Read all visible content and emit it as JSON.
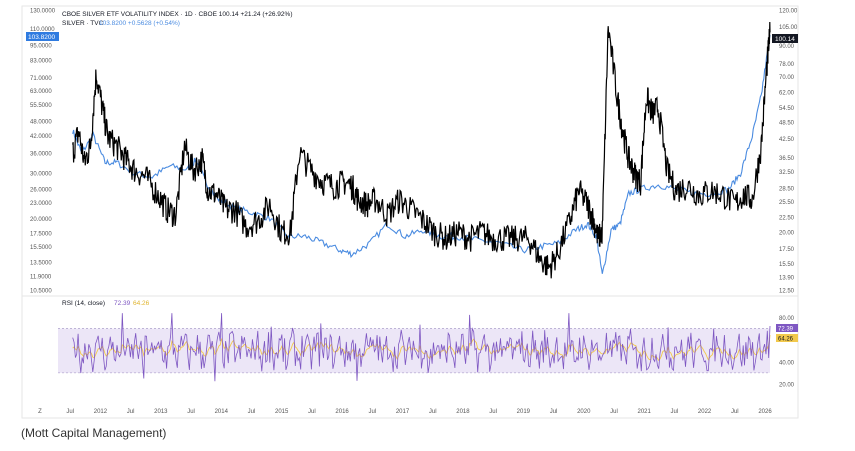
{
  "header": {
    "line1": "CBOE SILVER ETF VOLATILITY INDEX · 1D · CBOE  100.14  +21.24 (+26.92%)",
    "line2_name": "SILVER · TVC",
    "line2_value": "103.8200  +0.5628 (+0.54%)",
    "left_current_badge": "103.8200",
    "right_current_badge": "100.14",
    "rsi_label": "RSI (14, close)",
    "rsi_value": "72.39",
    "rsi_ma_value": "64.26",
    "rsi_badge_purple": "72.39",
    "rsi_badge_yellow": "64.26"
  },
  "caption": "(Mott Capital Management)",
  "colors": {
    "vol_index": "#000000",
    "silver": "#4a8be0",
    "rsi": "#7e57c2",
    "rsi_ma": "#f2c94c",
    "rsi_band": "#ece6f7",
    "left_badge": "#2f7be0",
    "right_badge": "#131722"
  },
  "chart_data": [
    {
      "type": "line",
      "title": "CBOE SILVER ETF VOLATILITY INDEX · 1D · CBOE",
      "y_scale": "log",
      "x_ticks": [
        "Z",
        "Jul",
        "2012",
        "Jul",
        "2013",
        "Jul",
        "2014",
        "Jul",
        "2015",
        "Jul",
        "2016",
        "Jul",
        "2017",
        "Jul",
        "2018",
        "Jul",
        "2019",
        "Jul",
        "2020",
        "Jul",
        "2021",
        "Jul",
        "2022",
        "Jul",
        "2026"
      ],
      "left_axis_ticks": [
        "130.0000",
        "110.0000",
        "95.0000",
        "83.0000",
        "71.0000",
        "63.0000",
        "55.5000",
        "48.0000",
        "42.0000",
        "36.0000",
        "30.0000",
        "26.0000",
        "23.0000",
        "20.0000",
        "17.5000",
        "15.5000",
        "13.5000",
        "11.9000",
        "10.5000"
      ],
      "right_axis_ticks": [
        "120.00",
        "105.00",
        "90.00",
        "78.00",
        "70.00",
        "62.00",
        "54.50",
        "48.50",
        "42.50",
        "36.50",
        "32.50",
        "28.50",
        "25.50",
        "22.50",
        "20.00",
        "17.50",
        "15.50",
        "13.90",
        "12.50"
      ],
      "series": [
        {
          "name": "CBOE SILVER ETF VOLATILITY INDEX",
          "axis": "right",
          "x": [
            2011.25,
            2011.35,
            2011.45,
            2011.55,
            2011.65,
            2011.75,
            2011.85,
            2012.0,
            2012.15,
            2012.3,
            2012.5,
            2012.7,
            2012.85,
            2013.0,
            2013.15,
            2013.3,
            2013.45,
            2013.55,
            2013.7,
            2013.85,
            2014.0,
            2014.2,
            2014.4,
            2014.6,
            2014.8,
            2014.95,
            2015.1,
            2015.3,
            2015.5,
            2015.7,
            2015.85,
            2016.0,
            2016.1,
            2016.25,
            2016.4,
            2016.6,
            2016.8,
            2017.0,
            2017.2,
            2017.4,
            2017.6,
            2017.8,
            2018.0,
            2018.2,
            2018.4,
            2018.6,
            2018.8,
            2019.0,
            2019.2,
            2019.35,
            2019.5,
            2019.7,
            2019.85,
            2020.0,
            2020.1,
            2020.18,
            2020.25,
            2020.35,
            2020.5,
            2020.6,
            2020.7,
            2020.8,
            2020.9,
            2021.0,
            2021.1,
            2021.2,
            2021.35,
            2021.5,
            2021.7,
            2021.9,
            2022.1,
            2022.3,
            2022.5,
            2022.65,
            2022.8,
            2022.95,
            2023.05,
            2023.1
          ],
          "values": [
            38,
            45,
            35,
            40,
            72,
            55,
            43,
            40,
            36,
            33,
            31,
            27,
            24,
            23,
            40,
            33,
            36,
            28,
            27,
            24,
            24,
            21,
            22,
            25,
            20,
            20,
            38,
            33,
            30,
            29,
            30,
            29,
            26,
            25,
            26,
            23,
            26,
            24,
            22,
            20,
            19,
            20,
            19,
            20,
            19,
            19,
            19,
            19,
            16,
            15,
            17,
            22,
            28,
            25,
            22,
            19,
            20,
            105,
            60,
            45,
            36,
            32,
            30,
            60,
            52,
            55,
            33,
            28,
            29,
            27,
            28,
            27,
            25,
            27,
            26,
            40,
            78,
            100.14
          ]
        },
        {
          "name": "SILVER · TVC",
          "axis": "left",
          "x": [
            2011.25,
            2011.4,
            2011.6,
            2011.8,
            2012.0,
            2012.3,
            2012.6,
            2012.9,
            2013.2,
            2013.35,
            2013.5,
            2013.7,
            2014.0,
            2014.3,
            2014.6,
            2014.9,
            2015.2,
            2015.5,
            2015.8,
            2016.0,
            2016.3,
            2016.6,
            2016.9,
            2017.2,
            2017.5,
            2017.8,
            2018.1,
            2018.5,
            2018.9,
            2019.2,
            2019.5,
            2019.8,
            2020.0,
            2020.15,
            2020.25,
            2020.4,
            2020.55,
            2020.7,
            2020.9,
            2021.2,
            2021.5,
            2021.8,
            2022.1,
            2022.4,
            2022.6,
            2022.8,
            2022.95,
            2023.1
          ],
          "values": [
            44,
            36,
            42,
            33,
            33,
            30,
            29,
            32,
            31,
            34,
            28,
            24,
            22,
            21,
            20,
            17,
            17,
            16,
            15,
            14.5,
            16,
            19,
            17,
            18,
            17,
            17,
            16.5,
            16,
            15,
            15.5,
            16,
            18,
            19,
            17,
            12,
            18,
            19,
            25,
            26,
            27,
            26,
            25,
            25,
            26,
            30,
            42,
            60,
            103.82
          ]
        }
      ]
    },
    {
      "type": "line",
      "title": "RSI (14, close)",
      "axis_ticks": [
        "80.00",
        "60.00",
        "40.00",
        "20.00"
      ],
      "band": [
        30,
        70
      ],
      "series": [
        {
          "name": "RSI",
          "value_last": 72.39
        },
        {
          "name": "RSI MA",
          "value_last": 64.26
        }
      ]
    }
  ]
}
